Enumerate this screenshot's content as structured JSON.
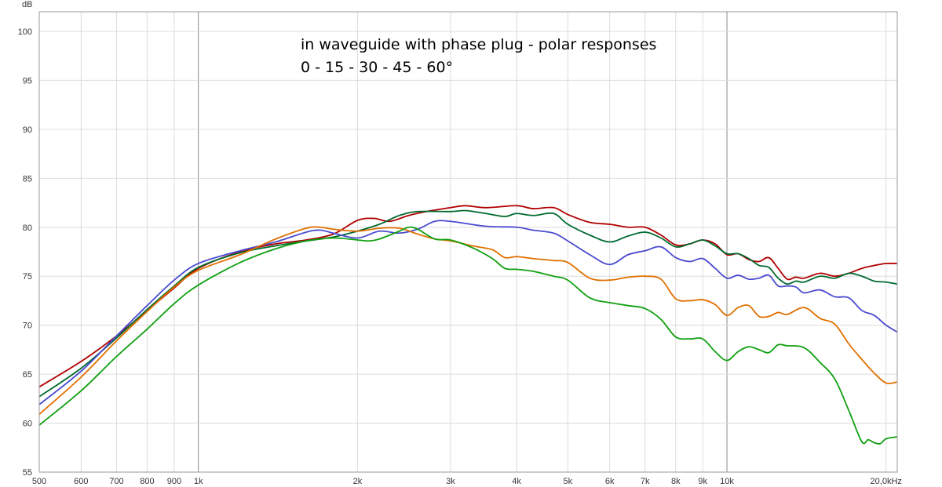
{
  "chart_data": {
    "type": "line",
    "title": "",
    "xlabel": "",
    "ylabel": "dB",
    "x_scale": "log",
    "xlim": [
      500,
      21000
    ],
    "ylim": [
      55,
      102
    ],
    "grid": true,
    "annotations": [
      "in waveguide with phase plug - polar responses",
      "0 - 15 - 30 - 45 - 60°"
    ],
    "x_ticks": [
      {
        "value": 500,
        "label": "500"
      },
      {
        "value": 600,
        "label": "600"
      },
      {
        "value": 700,
        "label": "700"
      },
      {
        "value": 800,
        "label": "800"
      },
      {
        "value": 900,
        "label": "900"
      },
      {
        "value": 1000,
        "label": "1k"
      },
      {
        "value": 2000,
        "label": "2k"
      },
      {
        "value": 3000,
        "label": "3k"
      },
      {
        "value": 4000,
        "label": "4k"
      },
      {
        "value": 5000,
        "label": "5k"
      },
      {
        "value": 6000,
        "label": "6k"
      },
      {
        "value": 7000,
        "label": "7k"
      },
      {
        "value": 8000,
        "label": "8k"
      },
      {
        "value": 9000,
        "label": "9k"
      },
      {
        "value": 10000,
        "label": "10k"
      },
      {
        "value": 20000,
        "label": "20,0kHz"
      }
    ],
    "y_ticks": [
      {
        "value": 55,
        "label": "55"
      },
      {
        "value": 60,
        "label": "60"
      },
      {
        "value": 65,
        "label": "65"
      },
      {
        "value": 70,
        "label": "70"
      },
      {
        "value": 75,
        "label": "75"
      },
      {
        "value": 80,
        "label": "80"
      },
      {
        "value": 85,
        "label": "85"
      },
      {
        "value": 90,
        "label": "90"
      },
      {
        "value": 95,
        "label": "95"
      },
      {
        "value": 100,
        "label": "100"
      }
    ],
    "series": [
      {
        "color": "#b00000",
        "points": [
          [
            500,
            63.7
          ],
          [
            600,
            66.3
          ],
          [
            700,
            68.9
          ],
          [
            800,
            71.5
          ],
          [
            900,
            73.8
          ],
          [
            1000,
            75.8
          ],
          [
            1200,
            77.5
          ],
          [
            1400,
            78.3
          ],
          [
            1600,
            78.7
          ],
          [
            1800,
            79.3
          ],
          [
            2000,
            80.7
          ],
          [
            2150,
            80.9
          ],
          [
            2300,
            80.6
          ],
          [
            2500,
            81.2
          ],
          [
            2700,
            81.6
          ],
          [
            3000,
            82.0
          ],
          [
            3200,
            82.2
          ],
          [
            3500,
            82.0
          ],
          [
            4000,
            82.2
          ],
          [
            4300,
            81.9
          ],
          [
            4700,
            82.0
          ],
          [
            5000,
            81.3
          ],
          [
            5500,
            80.5
          ],
          [
            6000,
            80.3
          ],
          [
            6500,
            80.0
          ],
          [
            7000,
            80.0
          ],
          [
            7500,
            79.2
          ],
          [
            8000,
            78.2
          ],
          [
            8500,
            78.3
          ],
          [
            9000,
            78.7
          ],
          [
            9500,
            78.3
          ],
          [
            10000,
            77.2
          ],
          [
            10500,
            77.3
          ],
          [
            11000,
            76.7
          ],
          [
            11500,
            76.5
          ],
          [
            12000,
            76.9
          ],
          [
            12500,
            75.8
          ],
          [
            13000,
            74.7
          ],
          [
            13500,
            74.9
          ],
          [
            14000,
            74.8
          ],
          [
            15000,
            75.3
          ],
          [
            16000,
            75.0
          ],
          [
            17000,
            75.3
          ],
          [
            18000,
            75.8
          ],
          [
            19000,
            76.1
          ],
          [
            20000,
            76.3
          ],
          [
            21000,
            76.3
          ]
        ]
      },
      {
        "color": "#006a30",
        "points": [
          [
            500,
            62.7
          ],
          [
            600,
            65.6
          ],
          [
            700,
            68.7
          ],
          [
            800,
            71.6
          ],
          [
            900,
            74.0
          ],
          [
            1000,
            75.9
          ],
          [
            1200,
            77.4
          ],
          [
            1400,
            78.1
          ],
          [
            1600,
            78.6
          ],
          [
            1800,
            79.0
          ],
          [
            2000,
            79.6
          ],
          [
            2200,
            80.3
          ],
          [
            2400,
            81.2
          ],
          [
            2600,
            81.6
          ],
          [
            3000,
            81.6
          ],
          [
            3200,
            81.7
          ],
          [
            3500,
            81.4
          ],
          [
            3800,
            81.1
          ],
          [
            4000,
            81.4
          ],
          [
            4300,
            81.2
          ],
          [
            4700,
            81.4
          ],
          [
            5000,
            80.3
          ],
          [
            5500,
            79.2
          ],
          [
            6000,
            78.5
          ],
          [
            6500,
            79.1
          ],
          [
            7000,
            79.5
          ],
          [
            7500,
            78.9
          ],
          [
            8000,
            78.0
          ],
          [
            8500,
            78.3
          ],
          [
            9000,
            78.7
          ],
          [
            9500,
            78.1
          ],
          [
            10000,
            77.3
          ],
          [
            10500,
            77.3
          ],
          [
            11000,
            76.8
          ],
          [
            11500,
            76.1
          ],
          [
            12000,
            75.9
          ],
          [
            12500,
            74.8
          ],
          [
            13000,
            74.2
          ],
          [
            13500,
            74.5
          ],
          [
            14000,
            74.4
          ],
          [
            15000,
            75.0
          ],
          [
            16000,
            74.8
          ],
          [
            17000,
            75.3
          ],
          [
            18000,
            75.0
          ],
          [
            19000,
            74.5
          ],
          [
            20000,
            74.4
          ],
          [
            21000,
            74.2
          ]
        ]
      },
      {
        "color": "#4a4ad0",
        "points": [
          [
            500,
            61.9
          ],
          [
            600,
            65.3
          ],
          [
            700,
            68.9
          ],
          [
            800,
            72.0
          ],
          [
            900,
            74.6
          ],
          [
            1000,
            76.3
          ],
          [
            1200,
            77.6
          ],
          [
            1400,
            78.5
          ],
          [
            1600,
            79.5
          ],
          [
            1700,
            79.7
          ],
          [
            1800,
            79.4
          ],
          [
            2000,
            78.9
          ],
          [
            2200,
            79.6
          ],
          [
            2400,
            79.4
          ],
          [
            2600,
            79.8
          ],
          [
            2800,
            80.6
          ],
          [
            3000,
            80.6
          ],
          [
            3500,
            80.1
          ],
          [
            4000,
            80.0
          ],
          [
            4300,
            79.7
          ],
          [
            4700,
            79.4
          ],
          [
            5000,
            78.6
          ],
          [
            5500,
            77.2
          ],
          [
            6000,
            76.2
          ],
          [
            6500,
            77.2
          ],
          [
            7000,
            77.6
          ],
          [
            7500,
            78.0
          ],
          [
            8000,
            76.9
          ],
          [
            8500,
            76.5
          ],
          [
            9000,
            76.8
          ],
          [
            9500,
            75.8
          ],
          [
            10000,
            74.8
          ],
          [
            10500,
            75.1
          ],
          [
            11000,
            74.7
          ],
          [
            11500,
            74.8
          ],
          [
            12000,
            75.1
          ],
          [
            12500,
            74.0
          ],
          [
            13000,
            74.0
          ],
          [
            13500,
            73.9
          ],
          [
            14000,
            73.3
          ],
          [
            15000,
            73.6
          ],
          [
            16000,
            72.9
          ],
          [
            17000,
            72.8
          ],
          [
            18000,
            71.5
          ],
          [
            19000,
            71.0
          ],
          [
            20000,
            70.0
          ],
          [
            21000,
            69.3
          ]
        ]
      },
      {
        "color": "#e07000",
        "points": [
          [
            500,
            60.9
          ],
          [
            600,
            64.7
          ],
          [
            700,
            68.4
          ],
          [
            800,
            71.4
          ],
          [
            900,
            73.9
          ],
          [
            1000,
            75.6
          ],
          [
            1200,
            77.2
          ],
          [
            1400,
            78.8
          ],
          [
            1600,
            79.9
          ],
          [
            1700,
            80.0
          ],
          [
            1800,
            79.8
          ],
          [
            2000,
            79.6
          ],
          [
            2200,
            79.9
          ],
          [
            2400,
            79.9
          ],
          [
            2600,
            79.3
          ],
          [
            2800,
            78.8
          ],
          [
            3000,
            78.6
          ],
          [
            3300,
            78.1
          ],
          [
            3600,
            77.7
          ],
          [
            3800,
            76.9
          ],
          [
            4000,
            77.0
          ],
          [
            4300,
            76.8
          ],
          [
            4700,
            76.6
          ],
          [
            5000,
            76.4
          ],
          [
            5500,
            74.8
          ],
          [
            6000,
            74.6
          ],
          [
            6500,
            74.9
          ],
          [
            7000,
            75.0
          ],
          [
            7500,
            74.7
          ],
          [
            8000,
            72.7
          ],
          [
            8500,
            72.5
          ],
          [
            9000,
            72.6
          ],
          [
            9500,
            72.1
          ],
          [
            10000,
            71.0
          ],
          [
            10500,
            71.8
          ],
          [
            11000,
            72.0
          ],
          [
            11500,
            70.9
          ],
          [
            12000,
            70.9
          ],
          [
            12500,
            71.3
          ],
          [
            13000,
            71.1
          ],
          [
            14000,
            71.8
          ],
          [
            15000,
            70.7
          ],
          [
            16000,
            70.1
          ],
          [
            17000,
            68.1
          ],
          [
            18000,
            66.5
          ],
          [
            19000,
            65.1
          ],
          [
            20000,
            64.1
          ],
          [
            21000,
            64.2
          ]
        ]
      },
      {
        "color": "#10a010",
        "points": [
          [
            500,
            59.8
          ],
          [
            600,
            63.3
          ],
          [
            700,
            66.8
          ],
          [
            800,
            69.6
          ],
          [
            900,
            72.2
          ],
          [
            1000,
            74.1
          ],
          [
            1200,
            76.4
          ],
          [
            1400,
            77.8
          ],
          [
            1600,
            78.6
          ],
          [
            1800,
            78.9
          ],
          [
            2000,
            78.7
          ],
          [
            2100,
            78.6
          ],
          [
            2200,
            78.8
          ],
          [
            2400,
            79.6
          ],
          [
            2500,
            80.0
          ],
          [
            2600,
            79.8
          ],
          [
            2800,
            78.8
          ],
          [
            3000,
            78.7
          ],
          [
            3300,
            77.9
          ],
          [
            3600,
            76.8
          ],
          [
            3800,
            75.8
          ],
          [
            4000,
            75.7
          ],
          [
            4300,
            75.5
          ],
          [
            4700,
            75.0
          ],
          [
            5000,
            74.6
          ],
          [
            5500,
            72.8
          ],
          [
            6000,
            72.3
          ],
          [
            6500,
            72.0
          ],
          [
            7000,
            71.7
          ],
          [
            7500,
            70.6
          ],
          [
            8000,
            68.8
          ],
          [
            8500,
            68.6
          ],
          [
            9000,
            68.6
          ],
          [
            9500,
            67.3
          ],
          [
            10000,
            66.4
          ],
          [
            10500,
            67.3
          ],
          [
            11000,
            67.8
          ],
          [
            11500,
            67.5
          ],
          [
            12000,
            67.2
          ],
          [
            12500,
            68.0
          ],
          [
            13000,
            67.9
          ],
          [
            14000,
            67.7
          ],
          [
            15000,
            66.2
          ],
          [
            16000,
            64.5
          ],
          [
            17000,
            61.3
          ],
          [
            18000,
            58.1
          ],
          [
            18500,
            58.3
          ],
          [
            19000,
            58.0
          ],
          [
            19500,
            57.9
          ],
          [
            20000,
            58.4
          ],
          [
            21000,
            58.6
          ]
        ]
      }
    ]
  }
}
